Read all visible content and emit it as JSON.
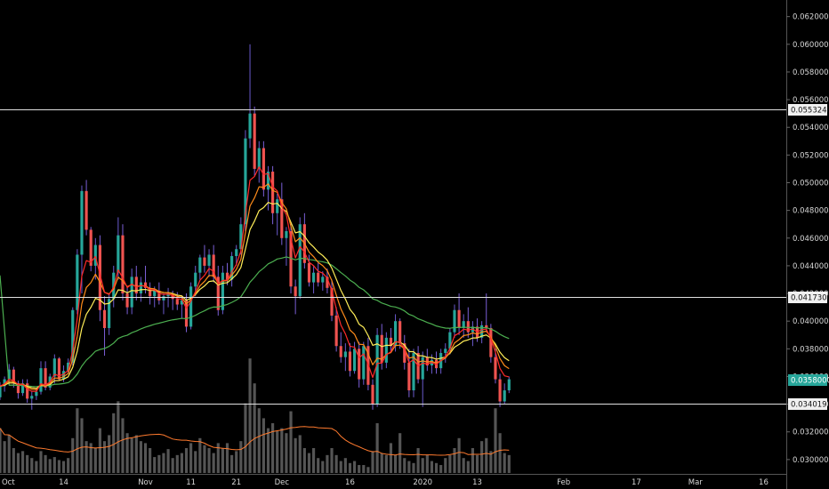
{
  "chart_data": {
    "type": "candlestick",
    "y_axis": {
      "range": [
        0.0289,
        0.0632
      ],
      "ticks": [
        "0.0300000",
        "0.0320000",
        "0.0340000",
        "0.0360000",
        "0.0380000",
        "0.0400000",
        "0.0420000",
        "0.0440000",
        "0.0460000",
        "0.0480000",
        "0.0500000",
        "0.0520000",
        "0.0540000",
        "0.0560000",
        "0.0580000",
        "0.0600000",
        "0.0620000"
      ]
    },
    "x_axis": {
      "date_range": [
        "2019-09-30",
        "2020-03-21"
      ],
      "ticks": [
        {
          "label": "Oct",
          "date": "2019-10-01"
        },
        {
          "label": "14",
          "date": "2019-10-14"
        },
        {
          "label": "Nov",
          "date": "2019-11-01"
        },
        {
          "label": "11",
          "date": "2019-11-11"
        },
        {
          "label": "21",
          "date": "2019-11-21"
        },
        {
          "label": "Dec",
          "date": "2019-12-01"
        },
        {
          "label": "16",
          "date": "2019-12-16"
        },
        {
          "label": "2020",
          "date": "2020-01-01"
        },
        {
          "label": "13",
          "date": "2020-01-13"
        },
        {
          "label": "Feb",
          "date": "2020-02-01"
        },
        {
          "label": "17",
          "date": "2020-02-17"
        },
        {
          "label": "Mar",
          "date": "2020-03-01"
        },
        {
          "label": "16",
          "date": "2020-03-16"
        }
      ]
    },
    "levels": [
      {
        "label": "0.0553248",
        "value": 0.0553248
      },
      {
        "label": "0.0417300",
        "value": 0.04173
      },
      {
        "label": "0.0340197",
        "value": 0.0340197
      }
    ],
    "last_price": {
      "label": "0.0358000",
      "value": 0.0358
    },
    "colors": {
      "up": "#26a69a",
      "down": "#ef5350",
      "ema_fast": "#ff2a2a",
      "ema_mid": "#ff8c1a",
      "ema_slow": "#ffee58",
      "ma_long": "#4caf50",
      "volume": "#555555",
      "volume_ma": "#ff7a2e",
      "level": "#e0e0e0"
    },
    "first_date": "2019-09-30",
    "candles": [
      [
        0.0345,
        0.0356,
        0.0343,
        0.0353
      ],
      [
        0.0353,
        0.036,
        0.0349,
        0.0358
      ],
      [
        0.0358,
        0.0369,
        0.0354,
        0.0365
      ],
      [
        0.0365,
        0.0367,
        0.0352,
        0.0355
      ],
      [
        0.0355,
        0.0357,
        0.0344,
        0.0348
      ],
      [
        0.0348,
        0.0358,
        0.0346,
        0.0355
      ],
      [
        0.0355,
        0.0358,
        0.0341,
        0.0344
      ],
      [
        0.0344,
        0.0349,
        0.0336,
        0.0346
      ],
      [
        0.0346,
        0.0351,
        0.0343,
        0.0349
      ],
      [
        0.0349,
        0.0371,
        0.0347,
        0.0366
      ],
      [
        0.0366,
        0.0371,
        0.035,
        0.0352
      ],
      [
        0.0352,
        0.0362,
        0.035,
        0.036
      ],
      [
        0.036,
        0.0376,
        0.0355,
        0.0373
      ],
      [
        0.0373,
        0.0374,
        0.0357,
        0.0358
      ],
      [
        0.0358,
        0.0368,
        0.0356,
        0.0364
      ],
      [
        0.0364,
        0.0373,
        0.0362,
        0.037
      ],
      [
        0.037,
        0.041,
        0.0368,
        0.0408
      ],
      [
        0.0408,
        0.0452,
        0.0405,
        0.0448
      ],
      [
        0.0448,
        0.0498,
        0.042,
        0.0494
      ],
      [
        0.0494,
        0.0502,
        0.0462,
        0.0466
      ],
      [
        0.0466,
        0.0468,
        0.0436,
        0.044
      ],
      [
        0.044,
        0.046,
        0.043,
        0.0455
      ],
      [
        0.0455,
        0.0462,
        0.04,
        0.0408
      ],
      [
        0.0408,
        0.0418,
        0.0375,
        0.0395
      ],
      [
        0.0395,
        0.042,
        0.039,
        0.0416
      ],
      [
        0.0416,
        0.044,
        0.041,
        0.0435
      ],
      [
        0.0435,
        0.0475,
        0.043,
        0.0462
      ],
      [
        0.0462,
        0.047,
        0.0415,
        0.042
      ],
      [
        0.042,
        0.0425,
        0.0405,
        0.041
      ],
      [
        0.041,
        0.0438,
        0.0405,
        0.0432
      ],
      [
        0.0432,
        0.044,
        0.0415,
        0.042
      ],
      [
        0.042,
        0.0432,
        0.0414,
        0.0428
      ],
      [
        0.0428,
        0.044,
        0.042,
        0.0424
      ],
      [
        0.0424,
        0.0428,
        0.0412,
        0.0418
      ],
      [
        0.0418,
        0.0425,
        0.041,
        0.0422
      ],
      [
        0.0422,
        0.0428,
        0.0412,
        0.0415
      ],
      [
        0.0415,
        0.042,
        0.0405,
        0.0418
      ],
      [
        0.0418,
        0.0424,
        0.041,
        0.042
      ],
      [
        0.042,
        0.0422,
        0.0408,
        0.0416
      ],
      [
        0.0416,
        0.0421,
        0.0408,
        0.0412
      ],
      [
        0.0412,
        0.0418,
        0.0402,
        0.0415
      ],
      [
        0.0415,
        0.042,
        0.0392,
        0.0396
      ],
      [
        0.0396,
        0.0428,
        0.0394,
        0.0425
      ],
      [
        0.0425,
        0.044,
        0.0418,
        0.0435
      ],
      [
        0.0435,
        0.0448,
        0.043,
        0.0446
      ],
      [
        0.0446,
        0.0455,
        0.0435,
        0.044
      ],
      [
        0.044,
        0.0452,
        0.0432,
        0.0448
      ],
      [
        0.0448,
        0.0455,
        0.0428,
        0.0432
      ],
      [
        0.0432,
        0.044,
        0.0404,
        0.0408
      ],
      [
        0.0408,
        0.044,
        0.0405,
        0.0435
      ],
      [
        0.0435,
        0.0442,
        0.0426,
        0.043
      ],
      [
        0.043,
        0.045,
        0.0425,
        0.0447
      ],
      [
        0.0447,
        0.0455,
        0.044,
        0.0452
      ],
      [
        0.0452,
        0.0475,
        0.0448,
        0.047
      ],
      [
        0.047,
        0.0538,
        0.0465,
        0.0532
      ],
      [
        0.0532,
        0.06,
        0.0525,
        0.055
      ],
      [
        0.055,
        0.0555,
        0.0505,
        0.051
      ],
      [
        0.051,
        0.053,
        0.05,
        0.0525
      ],
      [
        0.0525,
        0.053,
        0.049,
        0.0495
      ],
      [
        0.0495,
        0.0512,
        0.048,
        0.0508
      ],
      [
        0.0508,
        0.0512,
        0.047,
        0.0478
      ],
      [
        0.0478,
        0.0492,
        0.0462,
        0.0488
      ],
      [
        0.0488,
        0.05,
        0.0455,
        0.046
      ],
      [
        0.046,
        0.0468,
        0.044,
        0.0465
      ],
      [
        0.0465,
        0.047,
        0.042,
        0.0425
      ],
      [
        0.0425,
        0.043,
        0.0405,
        0.0418
      ],
      [
        0.0418,
        0.0475,
        0.0416,
        0.047
      ],
      [
        0.047,
        0.0478,
        0.0438,
        0.0442
      ],
      [
        0.0442,
        0.0448,
        0.0425,
        0.0428
      ],
      [
        0.0428,
        0.044,
        0.042,
        0.0435
      ],
      [
        0.0435,
        0.0442,
        0.0425,
        0.0428
      ],
      [
        0.0428,
        0.0436,
        0.0422,
        0.0432
      ],
      [
        0.0432,
        0.0438,
        0.042,
        0.0424
      ],
      [
        0.0424,
        0.043,
        0.04,
        0.0404
      ],
      [
        0.0404,
        0.041,
        0.0378,
        0.0382
      ],
      [
        0.0382,
        0.0392,
        0.037,
        0.0374
      ],
      [
        0.0374,
        0.0384,
        0.0364,
        0.0378
      ],
      [
        0.0378,
        0.0384,
        0.036,
        0.0364
      ],
      [
        0.0364,
        0.0385,
        0.0362,
        0.038
      ],
      [
        0.038,
        0.0385,
        0.0352,
        0.0358
      ],
      [
        0.0358,
        0.0385,
        0.0354,
        0.0382
      ],
      [
        0.0382,
        0.0388,
        0.035,
        0.0354
      ],
      [
        0.0354,
        0.0358,
        0.0336,
        0.034
      ],
      [
        0.034,
        0.0395,
        0.0338,
        0.039
      ],
      [
        0.039,
        0.0398,
        0.0365,
        0.037
      ],
      [
        0.037,
        0.0392,
        0.0366,
        0.0388
      ],
      [
        0.0388,
        0.0395,
        0.0378,
        0.0382
      ],
      [
        0.0382,
        0.0405,
        0.0378,
        0.04
      ],
      [
        0.04,
        0.0402,
        0.038,
        0.0384
      ],
      [
        0.0384,
        0.039,
        0.0365,
        0.037
      ],
      [
        0.037,
        0.038,
        0.0345,
        0.035
      ],
      [
        0.035,
        0.038,
        0.0345,
        0.0377
      ],
      [
        0.0377,
        0.0382,
        0.0355,
        0.0358
      ],
      [
        0.0358,
        0.0378,
        0.0338,
        0.0374
      ],
      [
        0.0374,
        0.038,
        0.0364,
        0.0368
      ],
      [
        0.0368,
        0.0376,
        0.0362,
        0.0372
      ],
      [
        0.0372,
        0.0378,
        0.0362,
        0.0366
      ],
      [
        0.0366,
        0.038,
        0.0362,
        0.0377
      ],
      [
        0.0377,
        0.0384,
        0.037,
        0.038
      ],
      [
        0.038,
        0.0395,
        0.0376,
        0.0392
      ],
      [
        0.0392,
        0.0412,
        0.0388,
        0.0408
      ],
      [
        0.0408,
        0.042,
        0.039,
        0.0395
      ],
      [
        0.0395,
        0.0405,
        0.0388,
        0.04
      ],
      [
        0.04,
        0.041,
        0.0388,
        0.0392
      ],
      [
        0.0392,
        0.04,
        0.0382,
        0.0396
      ],
      [
        0.0396,
        0.0402,
        0.0385,
        0.0388
      ],
      [
        0.0388,
        0.04,
        0.0384,
        0.0397
      ],
      [
        0.0397,
        0.042,
        0.0392,
        0.0395
      ],
      [
        0.0395,
        0.0398,
        0.037,
        0.0374
      ],
      [
        0.0374,
        0.038,
        0.0355,
        0.0358
      ],
      [
        0.0358,
        0.0362,
        0.0338,
        0.0342
      ],
      [
        0.0342,
        0.0355,
        0.034,
        0.035
      ],
      [
        0.035,
        0.036,
        0.0348,
        0.0358
      ]
    ],
    "volumes": [
      4.5,
      3.2,
      3.8,
      2.5,
      2.0,
      2.2,
      1.8,
      1.5,
      1.2,
      2.2,
      1.8,
      1.4,
      1.6,
      1.3,
      1.2,
      1.5,
      3.5,
      6.5,
      5.5,
      3.2,
      3.0,
      2.5,
      4.5,
      3.2,
      3.8,
      6.0,
      7.2,
      5.5,
      4.0,
      3.5,
      3.8,
      3.2,
      3.0,
      2.5,
      1.6,
      1.8,
      2.0,
      2.4,
      1.5,
      1.8,
      2.0,
      2.5,
      3.0,
      2.2,
      3.5,
      2.8,
      2.5,
      2.0,
      3.0,
      2.5,
      3.0,
      1.8,
      2.2,
      3.2,
      7.0,
      11.5,
      9.0,
      6.5,
      5.5,
      4.5,
      5.0,
      4.2,
      4.5,
      4.0,
      6.2,
      3.5,
      3.8,
      2.5,
      2.0,
      2.5,
      1.5,
      1.2,
      1.8,
      2.5,
      1.8,
      1.2,
      1.5,
      1.0,
      1.2,
      0.8,
      0.8,
      0.6,
      2.2,
      5.0,
      2.0,
      1.8,
      3.0,
      1.8,
      4.0,
      1.5,
      1.2,
      1.0,
      2.5,
      1.5,
      1.8,
      1.2,
      1.0,
      0.8,
      1.5,
      1.8,
      2.5,
      3.5,
      1.5,
      1.2,
      2.5,
      1.8,
      3.2,
      3.5,
      2.2,
      6.5,
      4.0,
      2.0,
      1.8
    ]
  }
}
